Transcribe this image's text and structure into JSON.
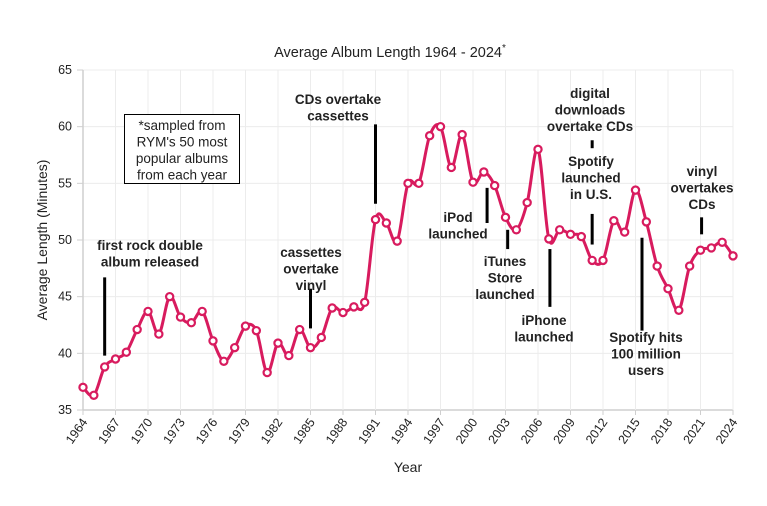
{
  "chart_data": {
    "type": "line",
    "title": "Average Album Length 1964 - 2024",
    "title_marker": "*",
    "xlabel": "Year",
    "ylabel": "Average Length (Minutes)",
    "xlim": [
      1964,
      2024
    ],
    "ylim": [
      35,
      65
    ],
    "yticks": [
      35,
      40,
      45,
      50,
      55,
      60,
      65
    ],
    "xticks": [
      1964,
      1967,
      1970,
      1973,
      1976,
      1979,
      1982,
      1985,
      1988,
      1991,
      1994,
      1997,
      2000,
      2003,
      2006,
      2009,
      2012,
      2015,
      2018,
      2021,
      2024
    ],
    "grid": true,
    "line_color": "#d81b5e",
    "series": [
      {
        "name": "Average Album Length",
        "x": [
          1964,
          1965,
          1966,
          1967,
          1968,
          1969,
          1970,
          1971,
          1972,
          1973,
          1974,
          1975,
          1976,
          1977,
          1978,
          1979,
          1980,
          1981,
          1982,
          1983,
          1984,
          1985,
          1986,
          1987,
          1988,
          1989,
          1990,
          1991,
          1992,
          1993,
          1994,
          1995,
          1996,
          1997,
          1998,
          1999,
          2000,
          2001,
          2002,
          2003,
          2004,
          2005,
          2006,
          2007,
          2008,
          2009,
          2010,
          2011,
          2012,
          2013,
          2014,
          2015,
          2016,
          2017,
          2018,
          2019,
          2020,
          2021,
          2022,
          2023,
          2024
        ],
        "values": [
          37.0,
          36.3,
          38.8,
          39.5,
          40.1,
          42.1,
          43.7,
          41.7,
          45.0,
          43.2,
          42.7,
          43.7,
          41.1,
          39.3,
          40.5,
          42.4,
          42.0,
          38.3,
          40.9,
          39.8,
          42.1,
          40.5,
          41.4,
          44.0,
          43.6,
          44.1,
          44.5,
          51.8,
          51.5,
          49.9,
          55.0,
          55.0,
          59.2,
          60.0,
          56.4,
          59.3,
          55.1,
          56.0,
          54.8,
          52.0,
          50.9,
          53.3,
          58.0,
          50.1,
          50.9,
          50.5,
          50.3,
          48.2,
          48.2,
          51.7,
          50.7,
          54.4,
          51.6,
          47.7,
          45.7,
          43.8,
          47.7,
          49.1,
          49.3,
          49.8,
          48.6
        ]
      }
    ],
    "note_box": [
      "*sampled from",
      "RYM's 50 most",
      "popular albums",
      "from each year"
    ],
    "annotations": [
      {
        "year": 1966,
        "lines": [
          "first rock double",
          "album released"
        ],
        "line_from": 39.8,
        "line_to": 46.7
      },
      {
        "year": 1985,
        "lines": [
          "cassettes",
          "overtake",
          "vinyl"
        ],
        "line_from": 42.2,
        "line_to": 45.7
      },
      {
        "year": 1991,
        "lines": [
          "CDs overtake",
          "cassettes"
        ],
        "line_from": 53.2,
        "line_to": 60.2
      },
      {
        "year": 2001.3,
        "lines": [
          "iPod",
          "launched"
        ],
        "line_from": 51.5,
        "line_to": 54.6
      },
      {
        "year": 2003.2,
        "lines": [
          "iTunes",
          "Store",
          "launched"
        ],
        "line_from": 49.2,
        "line_to": 50.9
      },
      {
        "year": 2007.1,
        "lines": [
          "iPhone",
          "launched"
        ],
        "line_from": 44.1,
        "line_to": 49.2
      },
      {
        "year": 2011,
        "lines": [
          "digital",
          "downloads",
          "overtake CDs"
        ],
        "line_from": 58.1,
        "line_to": 58.8
      },
      {
        "year": 2011,
        "lines": [
          "Spotify",
          "launched",
          "in  U.S."
        ],
        "line_from": 49.6,
        "line_to": 52.3
      },
      {
        "year": 2015.6,
        "lines": [
          "Spotify hits",
          "100 million",
          "users"
        ],
        "line_from": 42.0,
        "line_to": 50.2
      },
      {
        "year": 2021.1,
        "lines": [
          "vinyl",
          "overtakes",
          "CDs"
        ],
        "line_from": 50.5,
        "line_to": 52.0
      }
    ]
  }
}
